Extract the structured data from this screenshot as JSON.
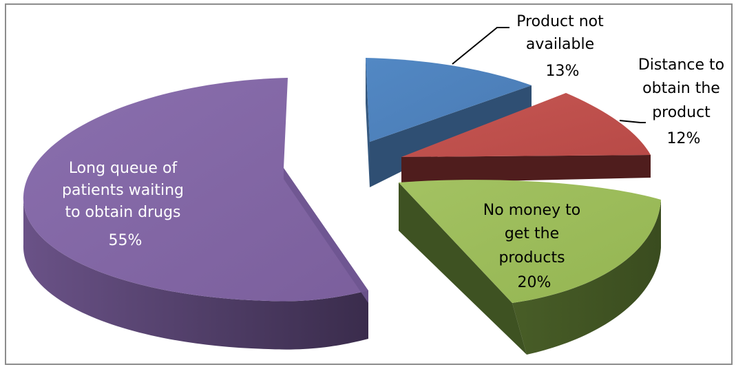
{
  "chart_data": {
    "type": "pie",
    "style": "3d-exploded",
    "categories": [
      "Long queue of patients waiting to obtain drugs",
      "Product not available",
      "Distance to obtain the product",
      "No money to get the products"
    ],
    "values": [
      55,
      13,
      12,
      20
    ],
    "unit": "%",
    "colors": [
      "#8064a2",
      "#4f81bd",
      "#c0504d",
      "#9bbb59"
    ],
    "slices": [
      {
        "label_lines": [
          "Long queue of",
          "patients waiting",
          "to obtain drugs"
        ],
        "percent_label": "55%",
        "value": 55,
        "color": "#8064a2"
      },
      {
        "label_lines": [
          "Product not",
          "available"
        ],
        "percent_label": "13%",
        "value": 13,
        "color": "#4f81bd"
      },
      {
        "label_lines": [
          "Distance to",
          "obtain the",
          "product"
        ],
        "percent_label": "12%",
        "value": 12,
        "color": "#c0504d"
      },
      {
        "label_lines": [
          "No money to",
          "get the",
          "products"
        ],
        "percent_label": "20%",
        "value": 20,
        "color": "#9bbb59"
      }
    ],
    "legend": "none"
  }
}
